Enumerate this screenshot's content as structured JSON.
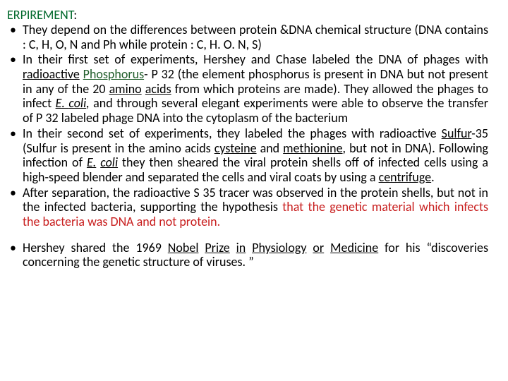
{
  "title": {
    "word": "ERPIREMENT",
    "colon": ":"
  },
  "bullets": {
    "b1": {
      "p1": "They depend on the differences between protein &DNA chemical structure  (DNA contains  : C, H, O, N and Ph    while protein : C, H. O. N, S)"
    },
    "b2": {
      "p1": "In their first set of experiments, Hershey and Chase labeled the DNA of phages with ",
      "l1": "radioactive",
      "sp1": " ",
      "l2": "Phosphorus",
      "p1b": "- P 32 (the element phosphorus is present in DNA but not present in any of the 20 ",
      "l3": "amino",
      "sp2": " ",
      "l4": "acids",
      "p2": " from which proteins are made). They allowed the phages to infect ",
      "l5": "E. ",
      "l6": "coli",
      "l6c": ",",
      "p3": " and through several elegant experiments were able to observe the transfer of P 32 labeled phage DNA into the cytoplasm of the bacterium"
    },
    "b3": {
      "p1": "In their second set of experiments, they labeled the phages with radioactive ",
      "l1": "Sulfur",
      "p1b": "-35 (Sulfur is present in the amino acids ",
      "l2": "cysteine",
      "p2": " and ",
      "l3": "methionine",
      "p3": ", but not in DNA). Following infection of ",
      "l4": "E.",
      "sp1": " ",
      "l5": "coli",
      "p4": " they then sheared the viral protein shells off of infected cells using a high-speed blender and separated the cells and viral coats by using a ",
      "l6": "centrifuge",
      "p5": "."
    },
    "b4": {
      "p1": " After separation, the radioactive S 35 tracer was observed in the protein shells, but not in the infected bacteria, supporting the hypothesis ",
      "red": "that the genetic material which infects the bacteria was DNA and not protein."
    },
    "b5": {
      "p1": "Hershey shared the 1969 ",
      "l1": "Nobel",
      "sp1": " ",
      "l2": "Prize",
      "sp2": " ",
      "l3": "in",
      "sp3": " ",
      "l4": "Physiology",
      "sp4": " ",
      "l5": "or",
      "sp5": " ",
      "l6": "Medicine",
      "p2": " for his “discoveries concerning the genetic structure of viruses. ”"
    }
  }
}
